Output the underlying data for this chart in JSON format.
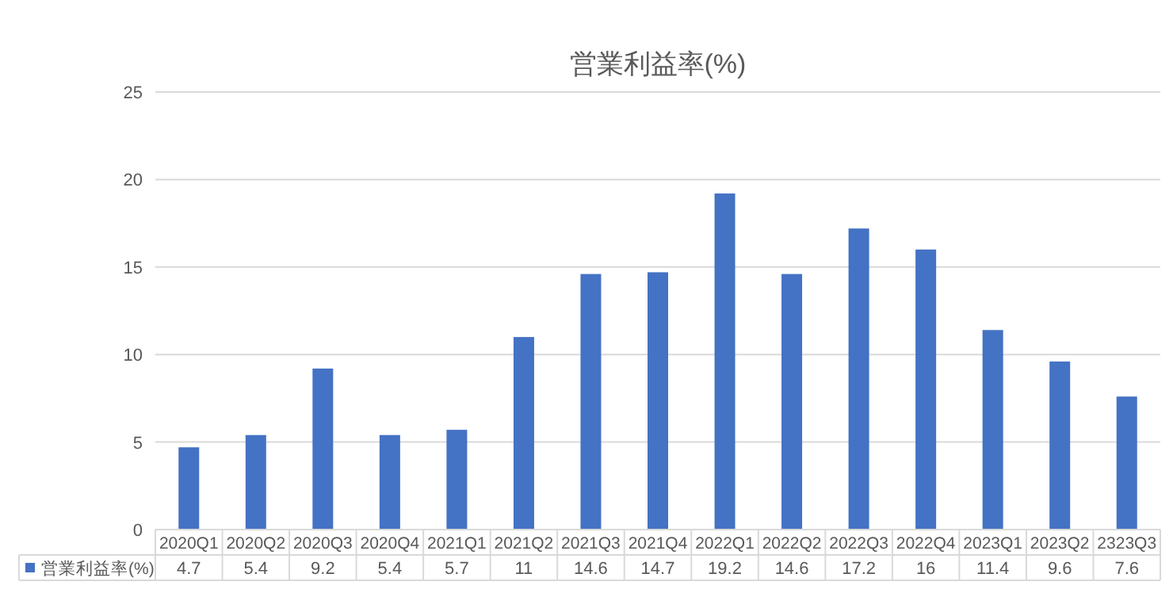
{
  "chart_data": {
    "type": "bar",
    "title": "営業利益率(%)",
    "categories": [
      "2020Q1",
      "2020Q2",
      "2020Q3",
      "2020Q4",
      "2021Q1",
      "2021Q2",
      "2021Q3",
      "2021Q4",
      "2022Q1",
      "2022Q2",
      "2022Q3",
      "2022Q4",
      "2023Q1",
      "2023Q2",
      "2323Q3"
    ],
    "series": [
      {
        "name": "営業利益率(%)",
        "color": "#4472c4",
        "values": [
          4.7,
          5.4,
          9.2,
          5.4,
          5.7,
          11,
          14.6,
          14.7,
          19.2,
          14.6,
          17.2,
          16,
          11.4,
          9.6,
          7.6
        ]
      }
    ],
    "ylim": [
      0,
      25
    ],
    "yticks": [
      0,
      5,
      10,
      15,
      20,
      25
    ],
    "grid": "y",
    "data_labels": true,
    "legend": "bottom left"
  }
}
